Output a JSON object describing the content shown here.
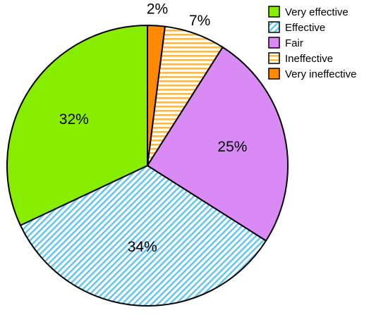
{
  "chart_data": {
    "type": "pie",
    "title": "",
    "slices": [
      {
        "label": "Very effective",
        "value": 32,
        "value_label": "32%",
        "color": "#88ee00",
        "pattern": "solid"
      },
      {
        "label": "Effective",
        "value": 34,
        "value_label": "34%",
        "color": "#66c6f0",
        "pattern": "diagonal-stripes"
      },
      {
        "label": "Fair",
        "value": 25,
        "value_label": "25%",
        "color": "#d98af5",
        "pattern": "solid"
      },
      {
        "label": "Ineffective",
        "value": 7,
        "value_label": "7%",
        "color": "#f7b84d",
        "pattern": "horizontal-stripes"
      },
      {
        "label": "Very ineffective",
        "value": 2,
        "value_label": "2%",
        "color": "#ff8a00",
        "pattern": "solid"
      }
    ],
    "legend": {
      "position": "top-right",
      "entries": [
        "Very effective",
        "Effective",
        "Fair",
        "Ineffective",
        "Very ineffective"
      ]
    },
    "start_angle": "top, clockwise from Very ineffective"
  }
}
